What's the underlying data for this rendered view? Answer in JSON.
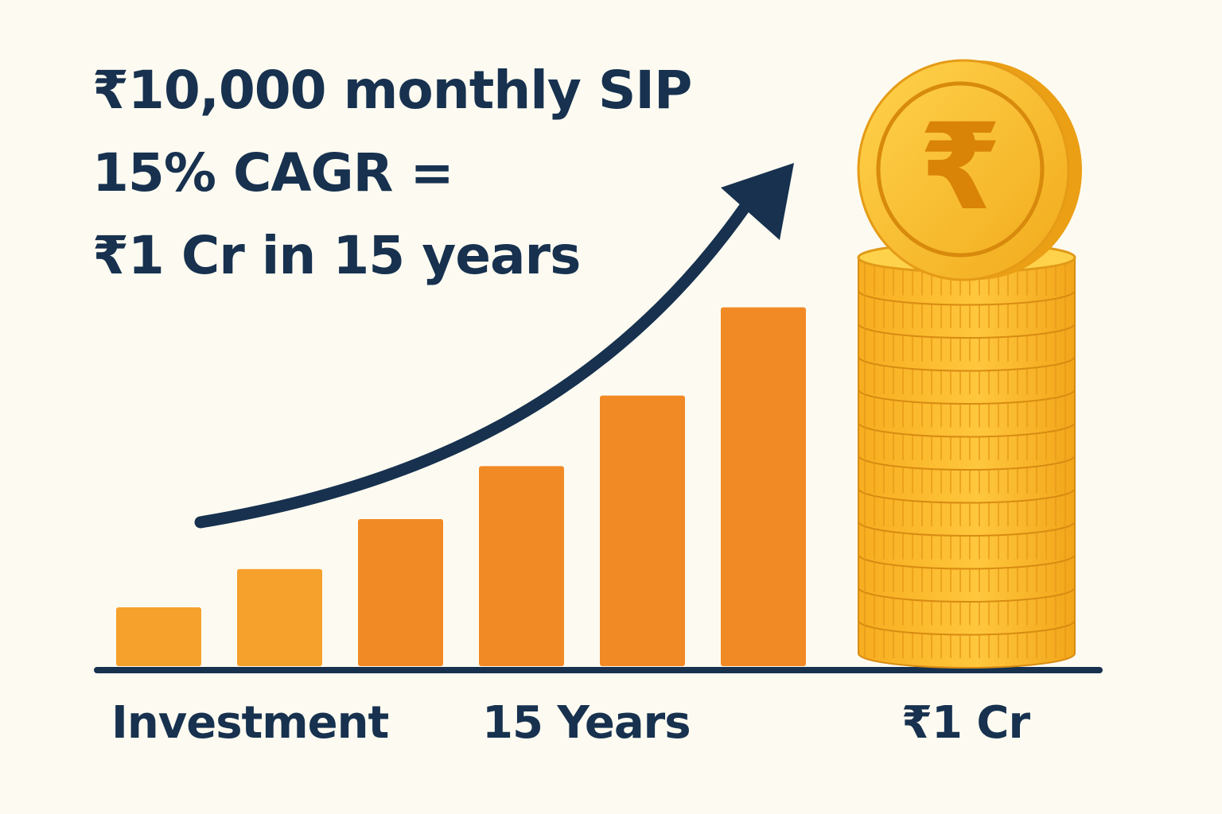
{
  "headline": {
    "line1": "₹10,000 monthly SIP",
    "line2": "15% CAGR =",
    "line3": "₹1 Cr in 15 years"
  },
  "colors": {
    "background": "#fdfbf1",
    "text": "#17314f",
    "bar": "#f18a25",
    "bar_light": "#f6a12c",
    "coin": "#f7b928",
    "coin_dark": "#e08f16",
    "arrow": "#17314f"
  },
  "chart_data": {
    "type": "bar",
    "values": [
      1,
      1.65,
      2.5,
      3.4,
      4.6,
      6.1
    ],
    "coin_stack_label": "₹1 Cr",
    "xlabel_left": "Investment",
    "xlabel_mid": "15 Years",
    "icon": "rupee-coin-stack-icon",
    "trend": "up-arrow-icon"
  }
}
